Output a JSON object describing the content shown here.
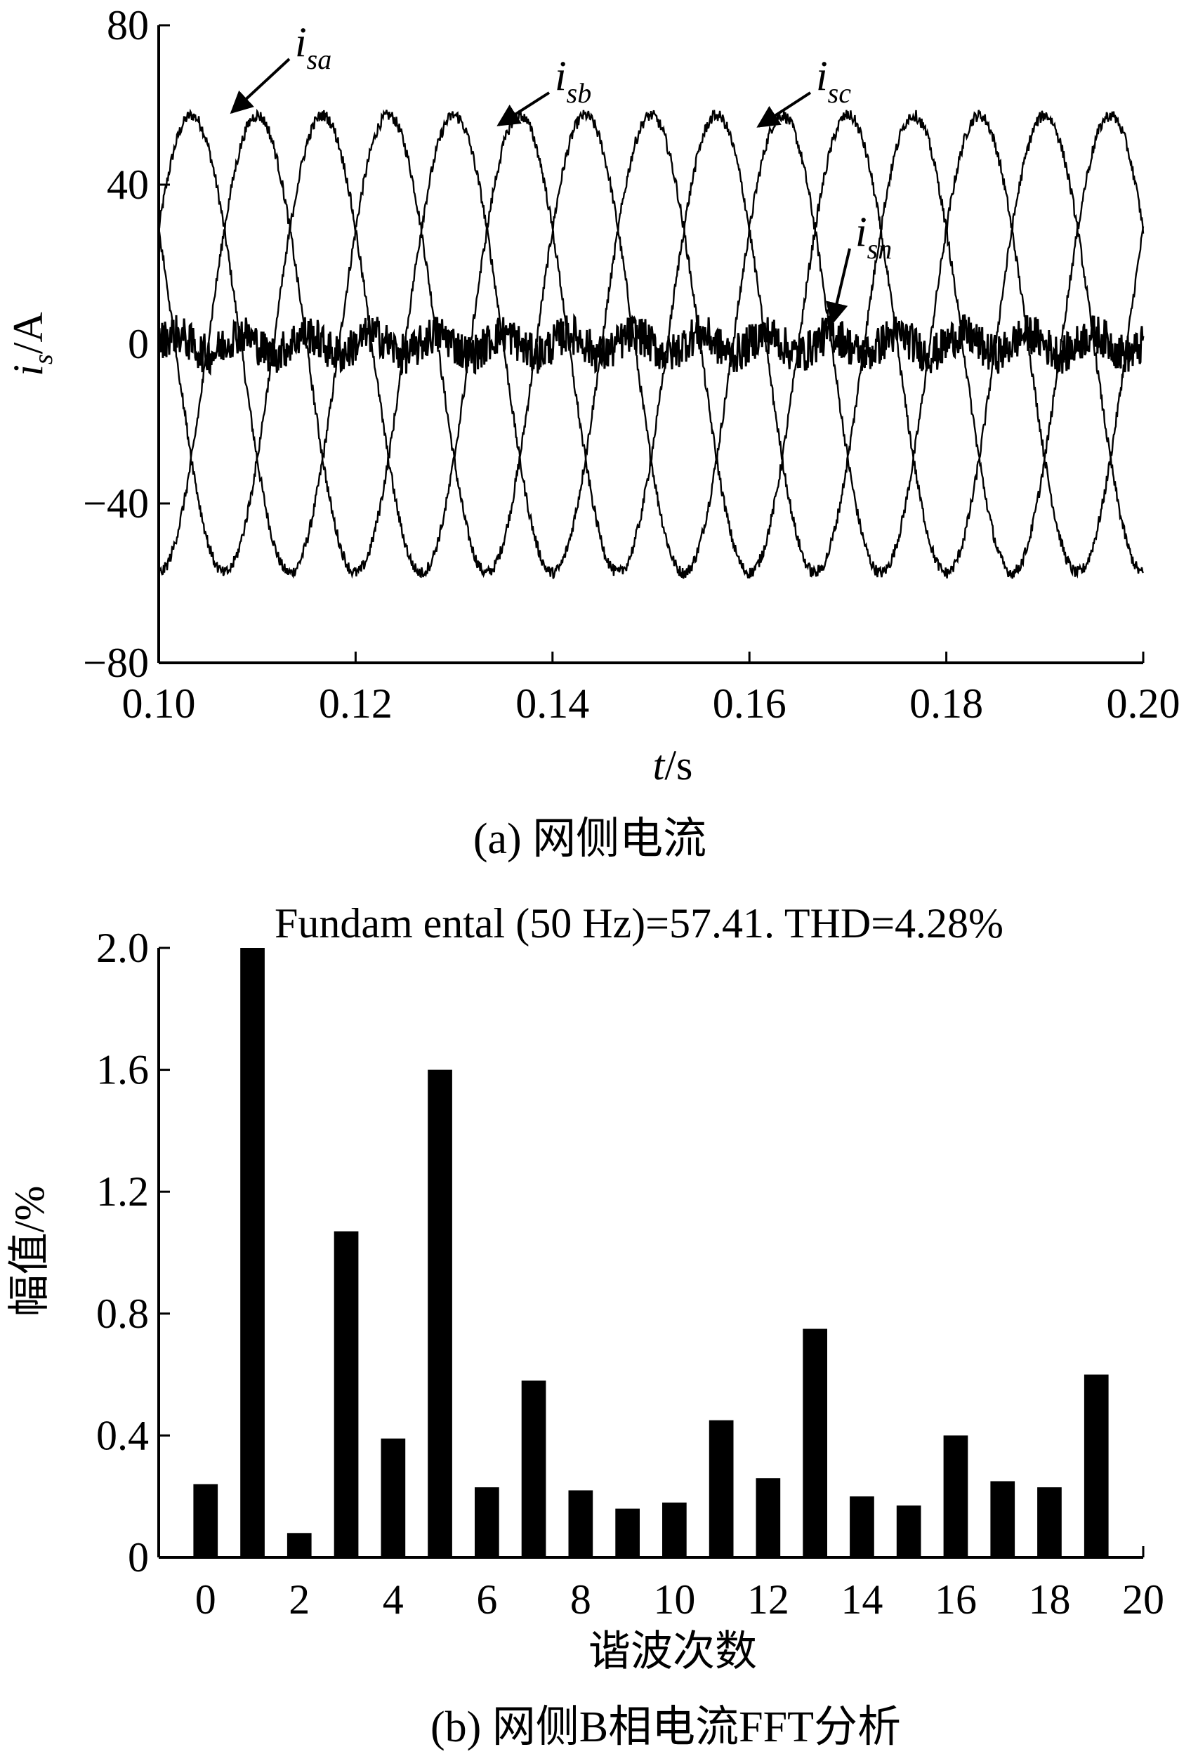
{
  "chart_data": [
    {
      "type": "line",
      "xlabel_var": "t",
      "xlabel_unit": "/s",
      "ylabel_var": "i",
      "ylabel_sub": "s",
      "ylabel_unit": "/A",
      "xlim": [
        0.1,
        0.2
      ],
      "ylim": [
        -80,
        80
      ],
      "x_ticks": [
        "0.10",
        "0.12",
        "0.14",
        "0.16",
        "0.18",
        "0.20"
      ],
      "y_ticks": [
        "80",
        "40",
        "0",
        "−40",
        "−80"
      ],
      "caption": "(a) 网侧电流",
      "frequency_hz": 50,
      "series": [
        {
          "name": "sa",
          "amplitude": 57.4,
          "phase_deg": 0
        },
        {
          "name": "sb",
          "amplitude": 57.4,
          "phase_deg": -120
        },
        {
          "name": "sc",
          "amplitude": 57.4,
          "phase_deg": 120
        },
        {
          "name": "sn",
          "amplitude": 0,
          "noise": 5
        }
      ],
      "annotations": [
        {
          "prefix": "i",
          "sub": "sa"
        },
        {
          "prefix": "i",
          "sub": "sb"
        },
        {
          "prefix": "i",
          "sub": "sc"
        },
        {
          "prefix": "i",
          "sub": "sn"
        }
      ]
    },
    {
      "type": "bar",
      "title": "Fundam ental (50 Hz)=57.41. THD=4.28%",
      "xlabel": "谐波次数",
      "ylabel": "幅值/%",
      "xlim": [
        -1,
        20
      ],
      "ylim": [
        0,
        2.0
      ],
      "x_ticks": [
        "0",
        "2",
        "4",
        "6",
        "8",
        "10",
        "12",
        "14",
        "16",
        "18",
        "20"
      ],
      "y_ticks": [
        "2.0",
        "1.6",
        "1.2",
        "0.8",
        "0.4",
        "0"
      ],
      "caption": "(b) 网侧B相电流FFT分析",
      "categories": [
        0,
        1,
        2,
        3,
        4,
        5,
        6,
        7,
        8,
        9,
        10,
        11,
        12,
        13,
        14,
        15,
        16,
        17,
        18,
        19
      ],
      "values": [
        0.24,
        2.0,
        0.08,
        1.07,
        0.39,
        1.6,
        0.23,
        0.58,
        0.22,
        0.16,
        0.18,
        0.45,
        0.26,
        0.75,
        0.2,
        0.17,
        0.4,
        0.25,
        0.23,
        0.6
      ]
    }
  ]
}
